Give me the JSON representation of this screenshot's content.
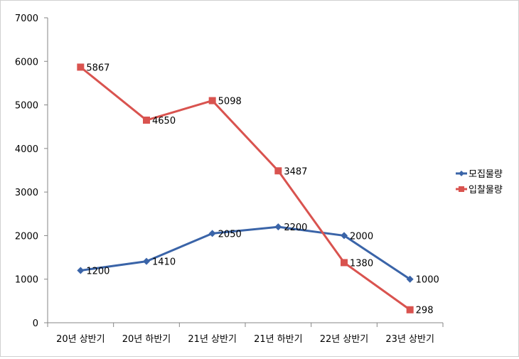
{
  "chart_data": {
    "type": "line",
    "categories": [
      "20년 상반기",
      "20년 하반기",
      "21년 상반기",
      "21년 하반기",
      "22년 상반기",
      "23년 상반기"
    ],
    "series": [
      {
        "name": "모집물량",
        "values": [
          1200,
          1410,
          2050,
          2200,
          2000,
          1000
        ],
        "color": "#3a64a8",
        "marker": "diamond"
      },
      {
        "name": "입찰물량",
        "values": [
          5867,
          4650,
          5098,
          3487,
          1380,
          298
        ],
        "color": "#d9534f",
        "marker": "square"
      }
    ],
    "ylim": [
      0,
      7000
    ],
    "yticks": [
      0,
      1000,
      2000,
      3000,
      4000,
      5000,
      6000,
      7000
    ],
    "grid": false,
    "legend": "right",
    "data_labels": true
  }
}
